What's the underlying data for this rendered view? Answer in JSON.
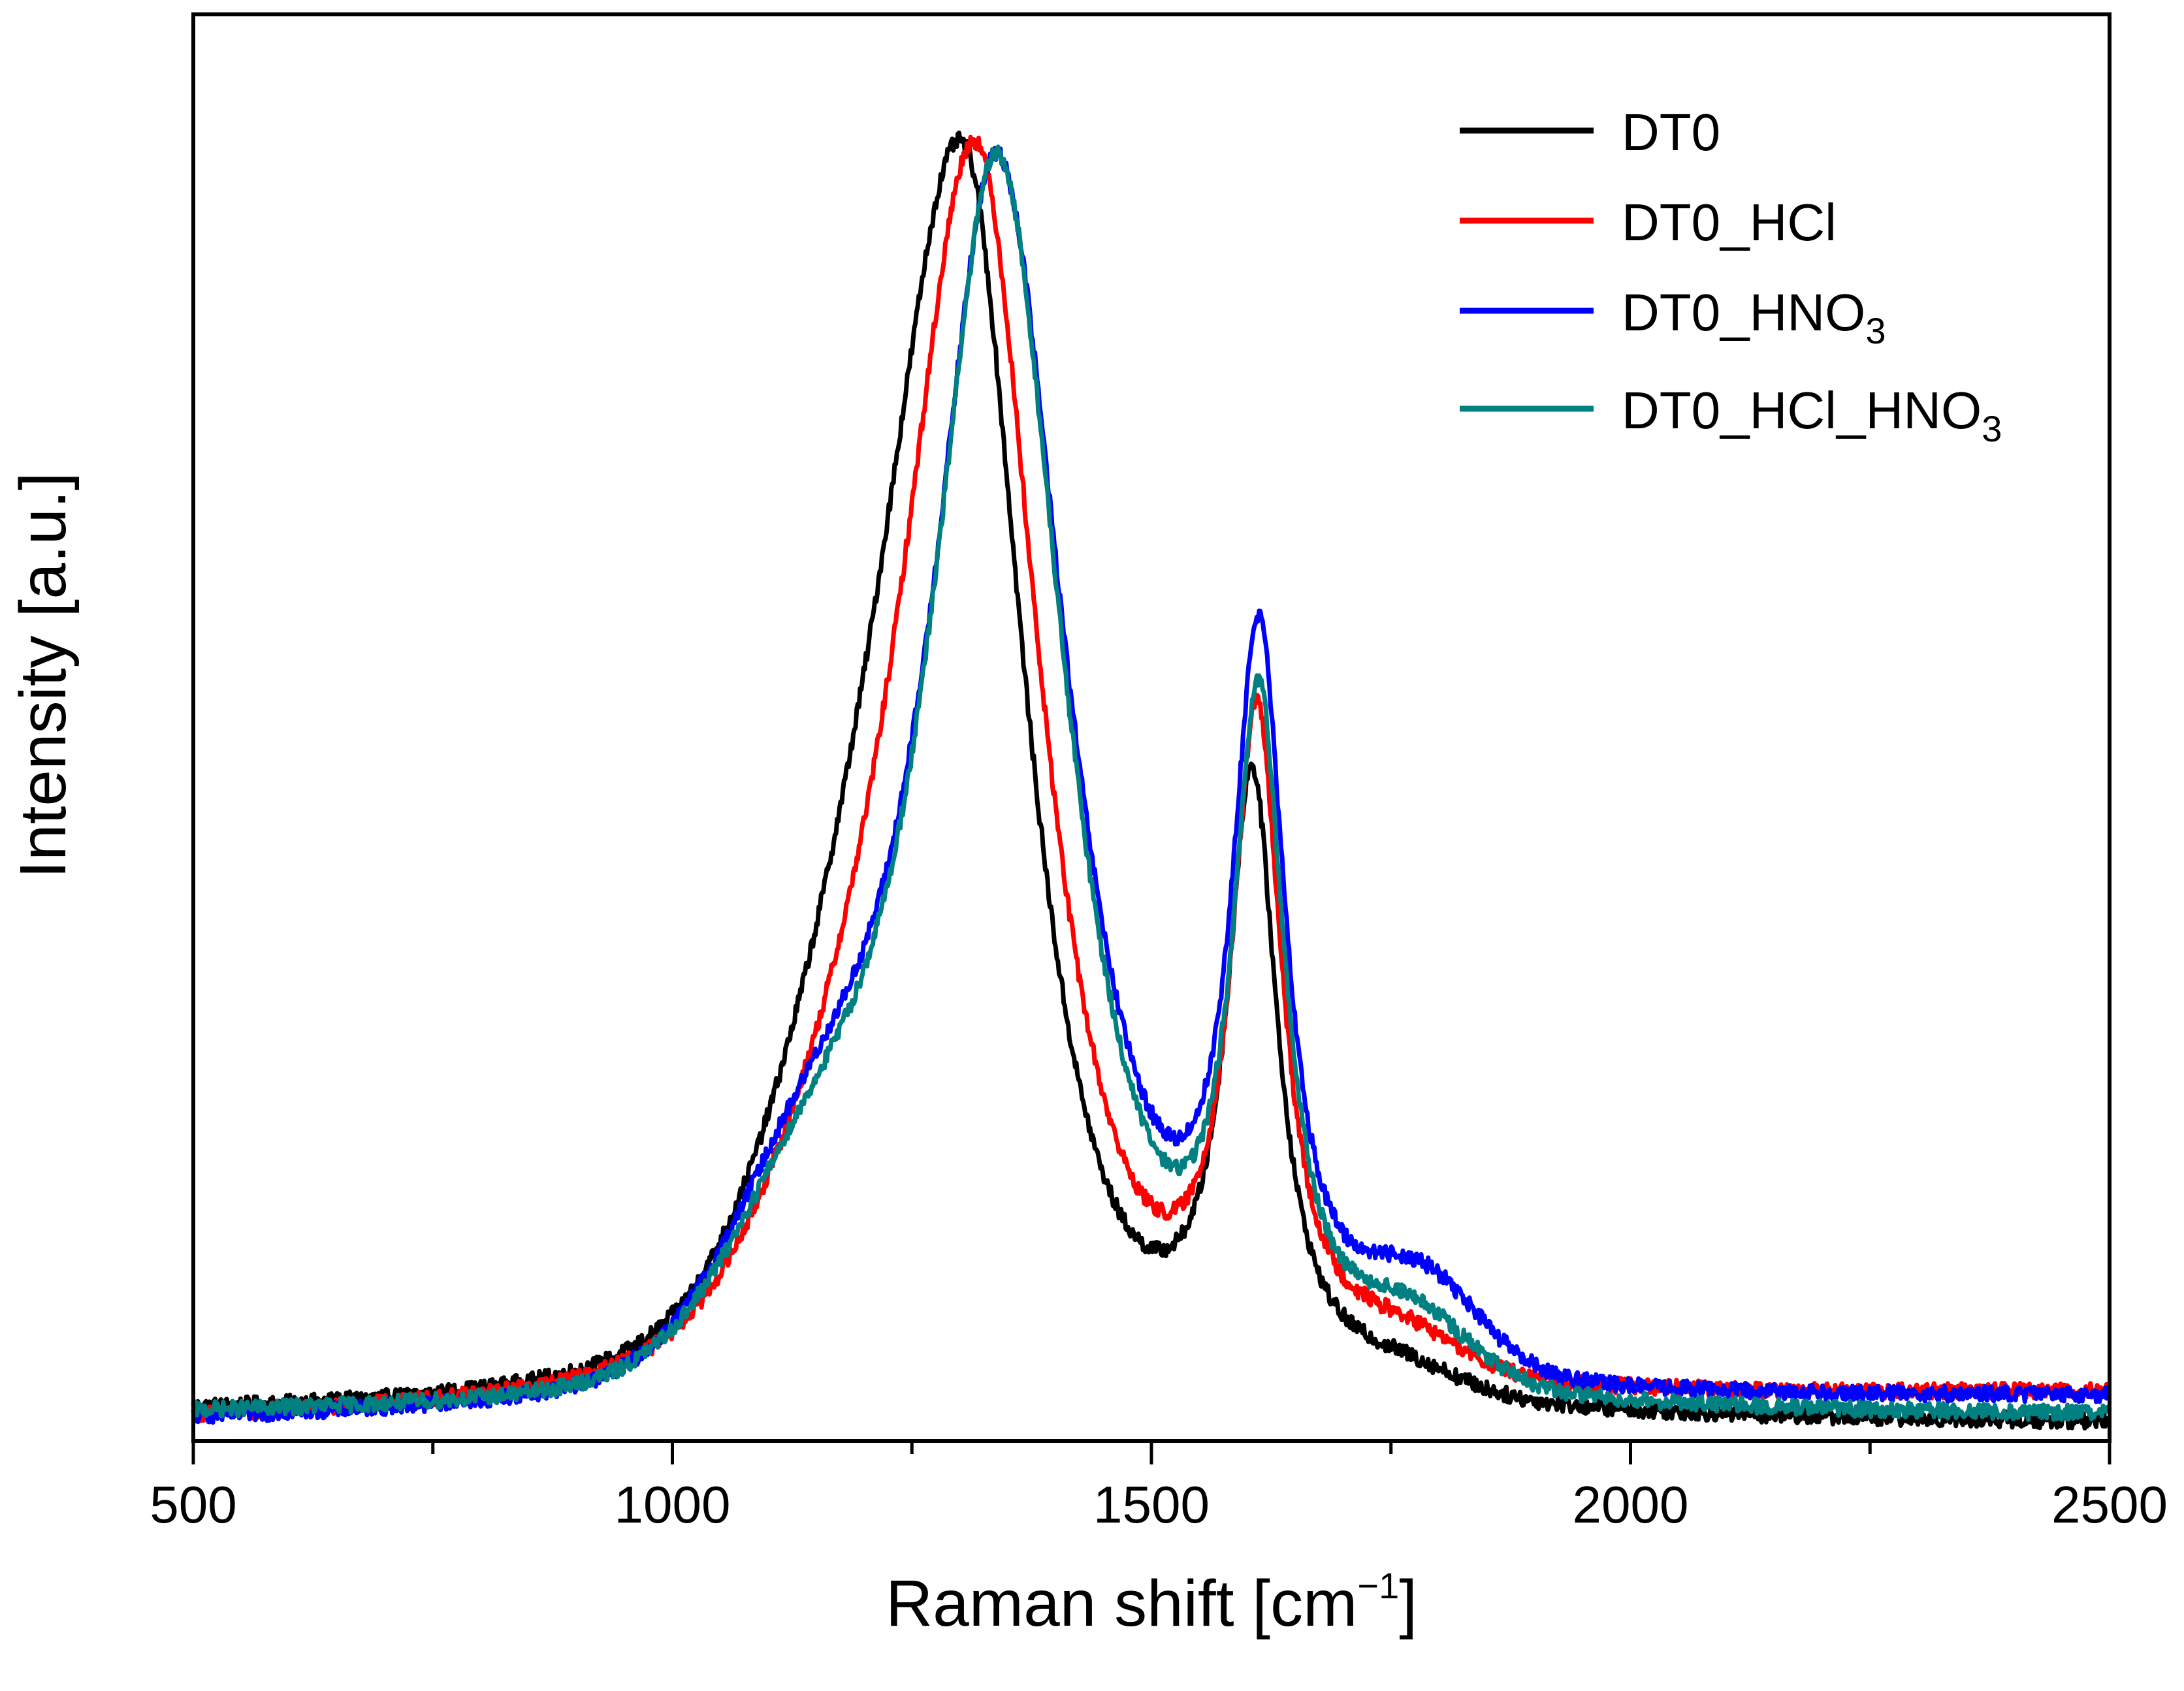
{
  "chart_data": {
    "type": "line",
    "title": "",
    "xlabel": "Raman shift [cm",
    "xlabel_unit_sup": "−1",
    "xlabel_close": "]",
    "ylabel": "Intensity [a.u.]",
    "xlim": [
      500,
      2500
    ],
    "ylim": [
      0,
      1.0
    ],
    "x_ticks": [
      500,
      1000,
      1500,
      2000,
      2500
    ],
    "x_tick_labels": [
      "500",
      "1000",
      "1500",
      "2000",
      "2500"
    ],
    "x_minor_ticks": [
      750,
      1250,
      1750,
      2250
    ],
    "y_ticks_visible": false,
    "legend_position": "top-right",
    "series": [
      {
        "name": "DT0",
        "label_main": "DT0",
        "label_sub": "",
        "label_tail": "",
        "label_sub2": "",
        "color": "#000000",
        "D_peak": 1305,
        "D_height": 1.0,
        "D_width_left": 95,
        "D_width_right": 75,
        "G_peak": 1605,
        "G_height": 0.64,
        "G_width": 32,
        "shoulder_pos": 1190,
        "shoulder_height": 0.18,
        "baseline_left": 0.01,
        "baseline_right": 0.005,
        "tail_bump_pos": 1760,
        "tail_bump_height": 0.02
      },
      {
        "name": "DT0_HCl",
        "label_main": "DT0_HCl",
        "label_sub": "",
        "label_tail": "",
        "label_sub2": "",
        "color": "#ff0000",
        "D_peak": 1318,
        "D_height": 1.0,
        "D_width_left": 88,
        "D_width_right": 78,
        "G_peak": 1610,
        "G_height": 0.67,
        "G_width": 32,
        "shoulder_pos": 1190,
        "shoulder_height": 0.14,
        "baseline_left": 0.005,
        "baseline_right": 0.03,
        "tail_bump_pos": 1760,
        "tail_bump_height": 0.03
      },
      {
        "name": "DT0_HNO3",
        "label_main": "DT0_HNO",
        "label_sub": "3",
        "label_tail": "",
        "label_sub2": "",
        "color": "#0000ff",
        "D_peak": 1340,
        "D_height": 0.99,
        "D_width_left": 80,
        "D_width_right": 85,
        "G_peak": 1612,
        "G_height": 0.72,
        "G_width": 34,
        "shoulder_pos": 1160,
        "shoulder_height": 0.17,
        "baseline_left": 0.005,
        "baseline_right": 0.025,
        "tail_bump_pos": 1780,
        "tail_bump_height": 0.07
      },
      {
        "name": "DT0_HCl_HNO3",
        "label_main": "DT0_HCl_HNO",
        "label_sub": "3",
        "label_tail": "",
        "label_sub2": "",
        "color": "#008080",
        "D_peak": 1340,
        "D_height": 0.99,
        "D_width_left": 80,
        "D_width_right": 82,
        "G_peak": 1612,
        "G_height": 0.66,
        "G_width": 33,
        "shoulder_pos": 1160,
        "shoulder_height": 0.15,
        "baseline_left": 0.01,
        "baseline_right": 0.01,
        "tail_bump_pos": 1770,
        "tail_bump_height": 0.05
      }
    ]
  }
}
